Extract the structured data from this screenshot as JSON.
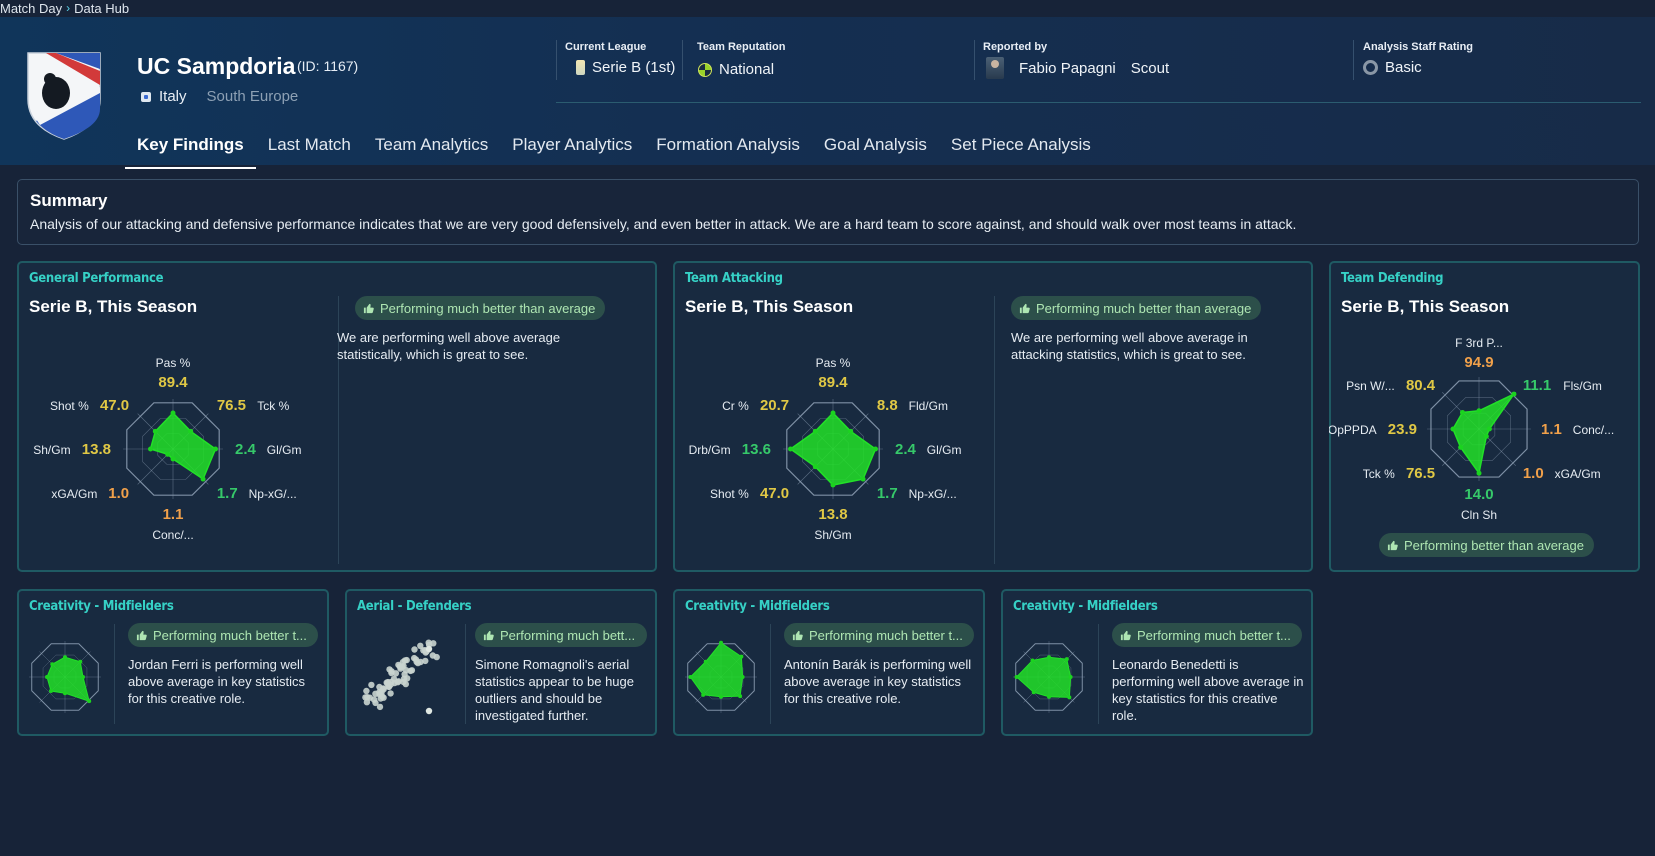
{
  "breadcrumb": {
    "item1": "Match Day",
    "item2": "Data Hub"
  },
  "team": {
    "name": "UC Sampdoria",
    "id": "(ID: 1167)",
    "country": "Italy",
    "region": "South Europe"
  },
  "info": {
    "league_label": "Current League",
    "league_value": "Serie B (1st)",
    "rep_label": "Team Reputation",
    "rep_value": "National",
    "reported_label": "Reported by",
    "scout_name": "Fabio Papagni",
    "scout_role": "Scout",
    "rating_label": "Analysis Staff Rating",
    "rating_value": "Basic"
  },
  "tabs": [
    "Key Findings",
    "Last Match",
    "Team Analytics",
    "Player Analytics",
    "Formation Analysis",
    "Goal Analysis",
    "Set Piece Analysis"
  ],
  "summary": {
    "title": "Summary",
    "text": "Analysis of our attacking and defensive performance indicates that we are very good defensively, and even better in attack. We are a hard team to score against, and should walk over most teams in attack."
  },
  "colors": {
    "accent": "#36d1c6",
    "high": "#e0c845",
    "good": "#36c96a",
    "mid": "#f0a04a",
    "radar_fill": "#22e028"
  },
  "cards": {
    "general": {
      "tag": "General Performance",
      "title": "Serie B, This Season",
      "badge": "Performing much better than average",
      "text": "We are performing well above average statistically, which is great to see."
    },
    "attacking": {
      "tag": "Team Attacking",
      "title": "Serie B, This Season",
      "badge": "Performing much better than average",
      "text": "We are performing well above average in attacking statistics, which is great to see."
    },
    "defending": {
      "tag": "Team Defending",
      "title": "Serie B, This Season",
      "badge": "Performing better than average"
    },
    "mini": [
      {
        "tag": "Creativity - Midfielders",
        "badge": "Performing much better t...",
        "text": "Jordan Ferri is performing well above average in key statistics for this creative role."
      },
      {
        "tag": "Aerial - Defenders",
        "badge": "Performing much bett...",
        "text": "Simone Romagnoli's aerial statistics appear to be huge outliers and should be investigated further."
      },
      {
        "tag": "Creativity - Midfielders",
        "badge": "Performing much better t...",
        "text": "Antonín Barák is performing well above average in key statistics for this creative role."
      },
      {
        "tag": "Creativity - Midfielders",
        "badge": "Performing much better t...",
        "text": "Leonardo Benedetti is performing well above average in key statistics for this creative role."
      }
    ]
  },
  "chart_data": [
    {
      "type": "radar",
      "name": "General Performance",
      "axes": [
        {
          "label": "Pas %",
          "value": "89.4",
          "level": "high",
          "score": 0.72
        },
        {
          "label": "Tck %",
          "value": "76.5",
          "level": "high",
          "score": 0.5
        },
        {
          "label": "Gl/Gm",
          "value": "2.4",
          "level": "good",
          "score": 0.85
        },
        {
          "label": "Np-xG/...",
          "value": "1.7",
          "level": "good",
          "score": 0.85
        },
        {
          "label": "Conc/...",
          "value": "1.1",
          "level": "mid",
          "score": 0.2
        },
        {
          "label": "xGA/Gm",
          "value": "1.0",
          "level": "mid",
          "score": 0.15
        },
        {
          "label": "Sh/Gm",
          "value": "13.8",
          "level": "high",
          "score": 0.45
        },
        {
          "label": "Shot %",
          "value": "47.0",
          "level": "high",
          "score": 0.5
        }
      ]
    },
    {
      "type": "radar",
      "name": "Team Attacking",
      "axes": [
        {
          "label": "Pas %",
          "value": "89.4",
          "level": "high",
          "score": 0.72
        },
        {
          "label": "Fld/Gm",
          "value": "8.8",
          "level": "high",
          "score": 0.5
        },
        {
          "label": "Gl/Gm",
          "value": "2.4",
          "level": "good",
          "score": 0.85
        },
        {
          "label": "Np-xG/...",
          "value": "1.7",
          "level": "good",
          "score": 0.85
        },
        {
          "label": "Sh/Gm",
          "value": "13.8",
          "level": "high",
          "score": 0.72
        },
        {
          "label": "Shot %",
          "value": "47.0",
          "level": "high",
          "score": 0.5
        },
        {
          "label": "Drb/Gm",
          "value": "13.6",
          "level": "good",
          "score": 0.85
        },
        {
          "label": "Cr %",
          "value": "20.7",
          "level": "high",
          "score": 0.5
        }
      ]
    },
    {
      "type": "radar",
      "name": "Team Defending",
      "axes": [
        {
          "label": "F 3rd P...",
          "value": "94.9",
          "level": "mid",
          "score": 0.35
        },
        {
          "label": "Fls/Gm",
          "value": "11.1",
          "level": "good",
          "score": 0.95
        },
        {
          "label": "Conc/...",
          "value": "1.1",
          "level": "mid",
          "score": 0.2
        },
        {
          "label": "xGA/Gm",
          "value": "1.0",
          "level": "mid",
          "score": 0.2
        },
        {
          "label": "Cln Sh",
          "value": "14.0",
          "level": "good",
          "score": 0.85
        },
        {
          "label": "Tck %",
          "value": "76.5",
          "level": "high",
          "score": 0.5
        },
        {
          "label": "OpPPDA",
          "value": "23.9",
          "level": "high",
          "score": 0.5
        },
        {
          "label": "Psn W/...",
          "value": "80.4",
          "level": "high",
          "score": 0.45
        }
      ]
    }
  ]
}
